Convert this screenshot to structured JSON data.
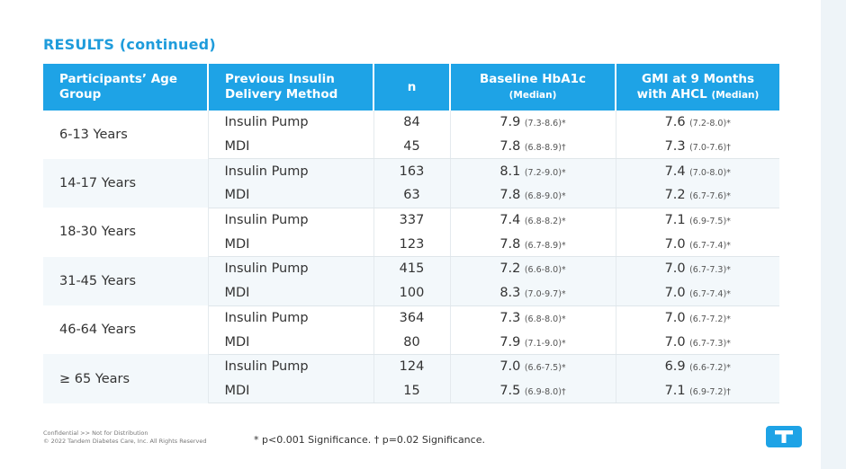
{
  "section_title": "RESULTS (continued)",
  "table": {
    "headers": [
      {
        "main": "Participants’ Age Group",
        "sub": ""
      },
      {
        "main": "Previous Insulin Delivery Method",
        "sub": ""
      },
      {
        "main": "n",
        "sub": ""
      },
      {
        "main": "Baseline HbA1c",
        "sub": "(Median)"
      },
      {
        "main": "GMI at 9 Months with AHCL",
        "sub": "(Median)"
      }
    ],
    "groups": [
      {
        "age": "6-13 Years",
        "rows": [
          {
            "method": "Insulin Pump",
            "n": "84",
            "baseline": "7.9",
            "baseline_ci": "(7.3-8.6)*",
            "gmi": "7.6",
            "gmi_ci": "(7.2-8.0)*"
          },
          {
            "method": "MDI",
            "n": "45",
            "baseline": "7.8",
            "baseline_ci": "(6.8-8.9)†",
            "gmi": "7.3",
            "gmi_ci": "(7.0-7.6)†"
          }
        ]
      },
      {
        "age": "14-17 Years",
        "rows": [
          {
            "method": "Insulin Pump",
            "n": "163",
            "baseline": "8.1",
            "baseline_ci": "(7.2-9.0)*",
            "gmi": "7.4",
            "gmi_ci": "(7.0-8.0)*"
          },
          {
            "method": "MDI",
            "n": "63",
            "baseline": "7.8",
            "baseline_ci": "(6.8-9.0)*",
            "gmi": "7.2",
            "gmi_ci": "(6.7-7.6)*"
          }
        ]
      },
      {
        "age": "18-30 Years",
        "rows": [
          {
            "method": "Insulin Pump",
            "n": "337",
            "baseline": "7.4",
            "baseline_ci": "(6.8-8.2)*",
            "gmi": "7.1",
            "gmi_ci": "(6.9-7.5)*"
          },
          {
            "method": "MDI",
            "n": "123",
            "baseline": "7.8",
            "baseline_ci": "(6.7-8.9)*",
            "gmi": "7.0",
            "gmi_ci": "(6.7-7.4)*"
          }
        ]
      },
      {
        "age": "31-45 Years",
        "rows": [
          {
            "method": "Insulin Pump",
            "n": "415",
            "baseline": "7.2",
            "baseline_ci": "(6.6-8.0)*",
            "gmi": "7.0",
            "gmi_ci": "(6.7-7.3)*"
          },
          {
            "method": "MDI",
            "n": "100",
            "baseline": "8.3",
            "baseline_ci": "(7.0-9.7)*",
            "gmi": "7.0",
            "gmi_ci": "(6.7-7.4)*"
          }
        ]
      },
      {
        "age": "46-64 Years",
        "rows": [
          {
            "method": "Insulin Pump",
            "n": "364",
            "baseline": "7.3",
            "baseline_ci": "(6.8-8.0)*",
            "gmi": "7.0",
            "gmi_ci": "(6.7-7.2)*"
          },
          {
            "method": "MDI",
            "n": "80",
            "baseline": "7.9",
            "baseline_ci": "(7.1-9.0)*",
            "gmi": "7.0",
            "gmi_ci": "(6.7-7.3)*"
          }
        ]
      },
      {
        "age": "≥ 65 Years",
        "rows": [
          {
            "method": "Insulin Pump",
            "n": "124",
            "baseline": "7.0",
            "baseline_ci": "(6.6-7.5)*",
            "gmi": "6.9",
            "gmi_ci": "(6.6-7.2)*"
          },
          {
            "method": "MDI",
            "n": "15",
            "baseline": "7.5",
            "baseline_ci": "(6.9-8.0)†",
            "gmi": "7.1",
            "gmi_ci": "(6.9-7.2)†"
          }
        ]
      }
    ]
  },
  "footer": {
    "confidential": "Confidential  >>  Not for Distribution",
    "copyright": "© 2022 Tandem Diabetes Care, Inc. All Rights Reserved",
    "footnote": "* p<0.001 Significance. † p=0.02 Significance."
  },
  "logo": {
    "icon": "tandem-t-logo",
    "color": "#1ea3e6"
  },
  "colors": {
    "accent": "#1ea3e6",
    "title": "#1f9cdb",
    "stripe": "#f3f8fb"
  }
}
